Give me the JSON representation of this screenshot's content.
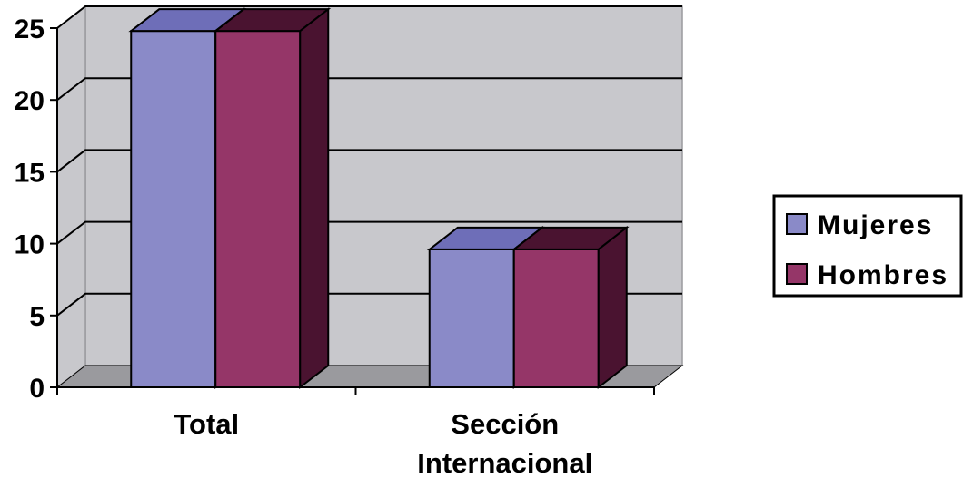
{
  "chart_data": {
    "type": "bar",
    "style": "3d-clustered-column",
    "categories": [
      [
        "Total"
      ],
      [
        "Sección",
        "Internacional"
      ]
    ],
    "series": [
      {
        "name": "Mujeres",
        "values": [
          24.8,
          9.6
        ],
        "color": "#8A8AC8",
        "side_color": "#6E6EB8"
      },
      {
        "name": "Hombres",
        "values": [
          24.8,
          9.6
        ],
        "color": "#953668",
        "side_color": "#4A1330"
      }
    ],
    "yticks": [
      "0",
      "5",
      "10",
      "15",
      "20",
      "25"
    ],
    "ylim": [
      0,
      25
    ],
    "grid": true,
    "legend_position": "right",
    "colors": {
      "wall": "#C8C8CC",
      "floor": "#9A9A9E",
      "gridline": "#000000"
    }
  }
}
